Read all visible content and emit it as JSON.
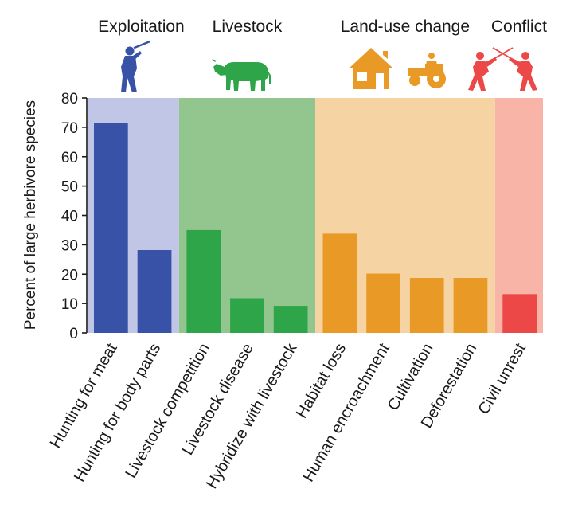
{
  "chart_data": {
    "type": "bar",
    "title": "",
    "xlabel": "",
    "ylabel": "Percent of large herbivore species",
    "ylim": [
      0,
      80
    ],
    "yticks": [
      0,
      10,
      20,
      30,
      40,
      50,
      60,
      70,
      80
    ],
    "grid": false,
    "categories": [
      "Hunting for meat",
      "Hunting for body parts",
      "Livestock competition",
      "Livestock disease",
      "Hybridize with livestock",
      "Habitat loss",
      "Human encroachment",
      "Cultivation",
      "Deforestation",
      "Civil unrest"
    ],
    "values": [
      71.5,
      28.2,
      35.0,
      11.8,
      9.2,
      33.8,
      20.2,
      18.7,
      18.7,
      13.2
    ],
    "groups": [
      {
        "name": "Exploitation",
        "start": 0,
        "end": 1,
        "icon": "hunter-icon",
        "bar_color": "#3752a6",
        "bg_color": "#c1c6e6"
      },
      {
        "name": "Livestock",
        "start": 2,
        "end": 4,
        "icon": "cow-icon",
        "bar_color": "#2ea548",
        "bg_color": "#93c58e"
      },
      {
        "name": "Land-use change",
        "start": 5,
        "end": 8,
        "icon": "house-tractor-icon",
        "bar_color": "#e99a26",
        "bg_color": "#f6d3a3"
      },
      {
        "name": "Conflict",
        "start": 9,
        "end": 9,
        "icon": "fencers-icon",
        "bar_color": "#ec4848",
        "bg_color": "#f7b4a7"
      }
    ]
  }
}
